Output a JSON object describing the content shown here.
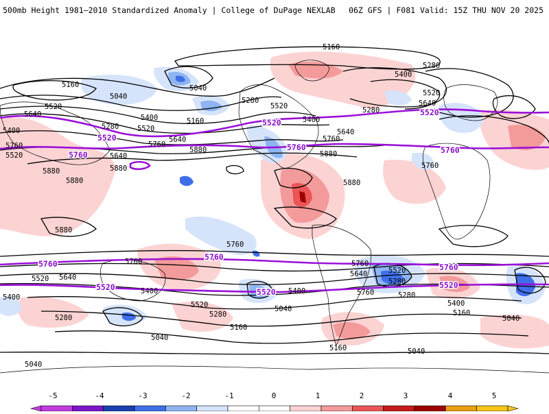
{
  "header": {
    "left_title": "500mb Height 1981–2010 Standardized Anomaly | College of DuPage NEXLAB",
    "right_title": "06Z GFS | F081 Valid: 15Z THU NOV 20 2025"
  },
  "contour_labels": {
    "c5160_top": "5160",
    "c5400_eur": "5400",
    "c5280_eur": "5280",
    "c5520_eur": "5520",
    "c5160_pac": "5160",
    "c5040_pac": "5040",
    "c5040_ak": "5040",
    "c5520_pac": "5520",
    "c5640_pac": "5640",
    "c5280_pac": "5280",
    "c5400_pac": "5400",
    "c5160_ak": "5160",
    "c5280_can": "5280",
    "c5520_can": "5520",
    "c5400_na": "5400",
    "c5280_atl": "5280",
    "c5640_us": "5640",
    "c5760_us": "5760",
    "c5880_gulf": "5880",
    "c5760_wp": "5760",
    "c5880_wp": "5880",
    "c5880_wp2": "5880",
    "c5880_ph": "5880",
    "c5760_npac": "5760",
    "c5640_npac": "5640",
    "c5880_cp": "5880",
    "c5760_as": "5760",
    "c5760_eur": "5760",
    "c5760_sp": "5760",
    "c5760_sa": "5760",
    "c5760_aus": "5760",
    "c5640_sa": "5640",
    "c5520_sa": "5520",
    "c5280_sa": "5280",
    "c5520_s": "5520",
    "c5640_s": "5640",
    "c5400_s": "5400",
    "c5400_s2": "5400",
    "c5520_s2": "5520",
    "c5400_s3": "5400",
    "c5040_s": "5040",
    "c5280_s": "5280",
    "c5280_s2": "5280",
    "c5160_s": "5160",
    "c5040_s2": "5040",
    "c5160_s2": "5160",
    "c5040_s3": "5040",
    "c5040_bot": "5040",
    "c5400_sio": "5400",
    "c5160_sio": "5160",
    "c5040_sio": "5040",
    "c5400_w": "5400",
    "c5520_w": "5520",
    "c5640_w": "5640",
    "c5760_w": "5760",
    "c5880_w": "5880",
    "c5640_w2": "5640",
    "c5520_w2": "5520",
    "c5280_w": "5280",
    "c5880_w3": "5880"
  },
  "purple_labels": {
    "p5520_nw": "5520",
    "p5520_na": "5520",
    "p5520_eur": "5520",
    "p5760_nw": "5760",
    "p5760_atl": "5760",
    "p5760_eur": "5760",
    "p5760_sw": "5760",
    "p5760_spac": "5760",
    "p5760_sio": "5760",
    "p5520_sw": "5520",
    "p5520_spac": "5520",
    "p5520_sio": "5520"
  },
  "colorbar": {
    "ticks": [
      "-5",
      "-4",
      "-3",
      "-2",
      "-1",
      "0",
      "1",
      "2",
      "3",
      "4",
      "5"
    ],
    "colors": [
      "#c23be0",
      "#7a16c8",
      "#1a3fb0",
      "#3f6fe8",
      "#8fb4f2",
      "#d6e4fb",
      "#ffffff",
      "#ffffff",
      "#fcd3d3",
      "#f39a9a",
      "#ea5656",
      "#c51b1b",
      "#9d0000",
      "#e9a012",
      "#f5c518"
    ]
  }
}
